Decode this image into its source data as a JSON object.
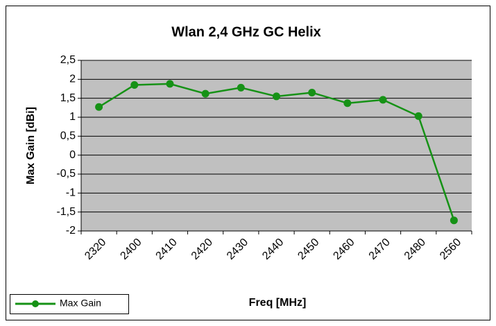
{
  "chart_data": {
    "type": "line",
    "title": "Wlan 2,4 GHz GC Helix",
    "x_label": "Freq [MHz]",
    "y_label": "Max Gain [dBi]",
    "categories": [
      "2320",
      "2400",
      "2410",
      "2420",
      "2430",
      "2440",
      "2450",
      "2460",
      "2470",
      "2480",
      "2560"
    ],
    "series": [
      {
        "name": "Max Gain",
        "color": "#169216",
        "values": [
          1.27,
          1.85,
          1.88,
          1.62,
          1.78,
          1.55,
          1.65,
          1.37,
          1.46,
          1.03,
          -1.72
        ]
      }
    ],
    "ylim": [
      -2,
      2.5
    ],
    "yticks": [
      -2,
      {
        "value": -1.5,
        "label": "-1,5"
      },
      -1,
      {
        "value": -0.5,
        "label": "-0,5"
      },
      0,
      {
        "value": 0.5,
        "label": "0,5"
      },
      1,
      {
        "value": 1.5,
        "label": "1,5"
      },
      2,
      {
        "value": 2.5,
        "label": "2,5"
      }
    ],
    "grid": true,
    "legend": "lower left",
    "plot_background": "#c0c0c0"
  }
}
